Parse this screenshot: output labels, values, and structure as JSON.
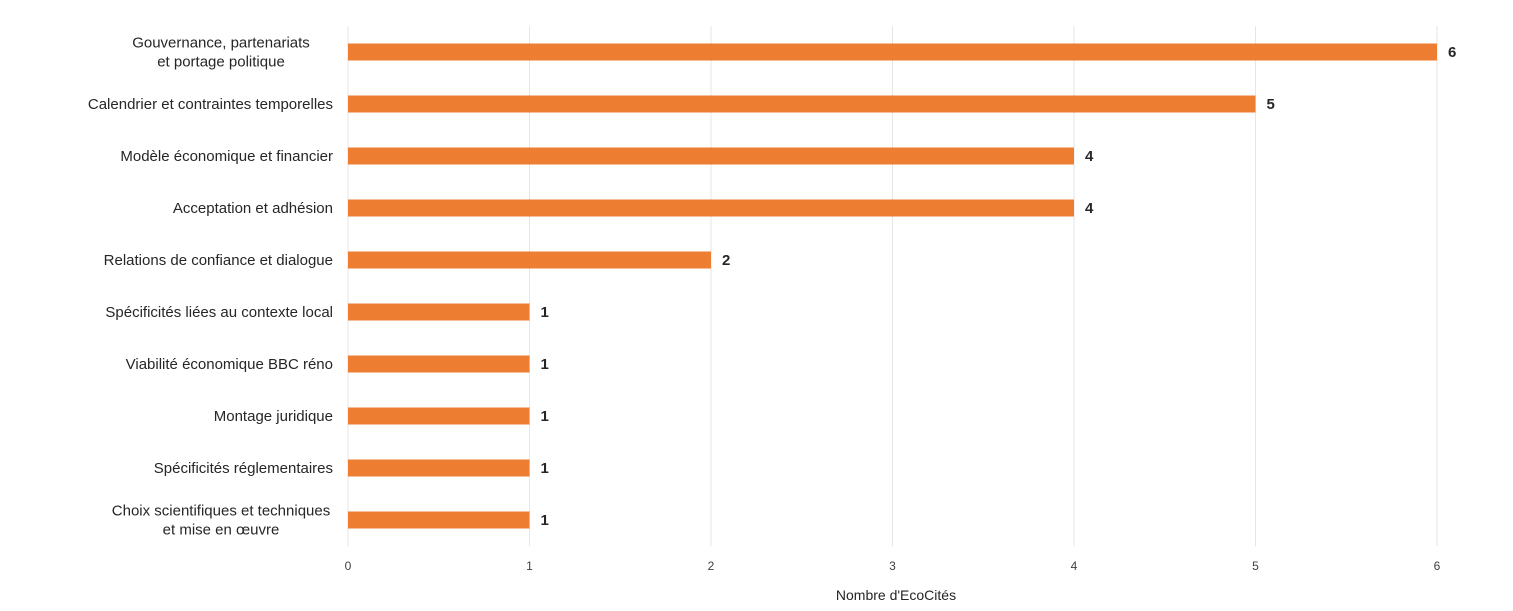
{
  "chart_data": {
    "type": "bar",
    "orientation": "horizontal",
    "categories": [
      [
        "Gouvernance, partenariats",
        "et portage politique"
      ],
      [
        "Calendrier et contraintes temporelles"
      ],
      [
        "Modèle économique et financier"
      ],
      [
        "Acceptation et adhésion"
      ],
      [
        "Relations de confiance et dialogue"
      ],
      [
        "Spécificités liées au contexte local"
      ],
      [
        "Viabilité économique BBC réno"
      ],
      [
        "Montage juridique"
      ],
      [
        "Spécificités réglementaires"
      ],
      [
        "Choix scientifiques et techniques",
        "et mise en œuvre"
      ]
    ],
    "values": [
      6,
      5,
      4,
      4,
      2,
      1,
      1,
      1,
      1,
      1
    ],
    "xlabel": "Nombre d'EcoCités",
    "xlim": [
      0,
      6
    ],
    "xticks": [
      0,
      1,
      2,
      3,
      4,
      5,
      6
    ],
    "grid": "vertical",
    "data_labels": true,
    "legend": "none",
    "bar_color": "#ED7D31"
  }
}
